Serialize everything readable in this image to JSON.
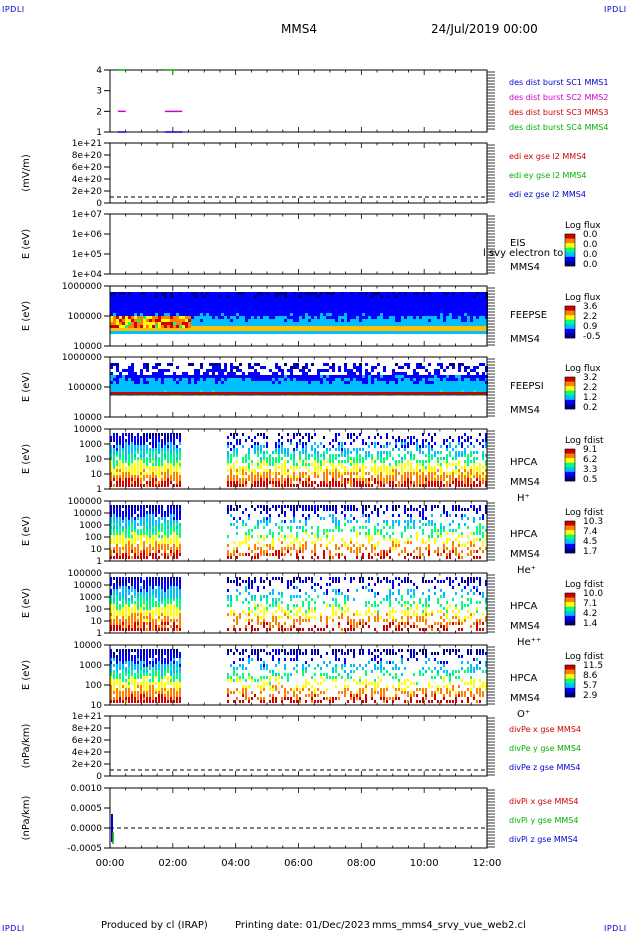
{
  "header": {
    "corner_label": "IPDLI",
    "spacecraft": "MMS4",
    "datetime": "24/Jul/2019 00:00"
  },
  "footer": {
    "produced_by": "Produced by cl (IRAP)",
    "printing_date": "Printing date: 01/Dec/2023",
    "filename": "mms_mms4_srvy_vue_web2.cl"
  },
  "x_axis": {
    "ticks": [
      "00:00",
      "02:00",
      "04:00",
      "06:00",
      "08:00",
      "10:00",
      "12:00"
    ],
    "range_hours": [
      0,
      12
    ]
  },
  "colors": {
    "series_red": "#d00000",
    "series_green": "#00b000",
    "series_blue": "#0000cc",
    "series_magenta": "#cc00cc",
    "frame": "#000000",
    "colorbar": [
      "#00007f",
      "#0000ff",
      "#00bfff",
      "#00ff80",
      "#ffff00",
      "#ff8000",
      "#d00000"
    ]
  },
  "panels": [
    {
      "id": "burst",
      "ylabel": "",
      "yticks": [
        "4",
        "3",
        "2",
        "1"
      ],
      "legend": [
        {
          "text": "des dist burst SC1 MMS1",
          "color": "#0000cc"
        },
        {
          "text": "des dist burst SC2 MMS2",
          "color": "#cc00cc"
        },
        {
          "text": "des dist burst SC3 MMS3",
          "color": "#d00000"
        },
        {
          "text": "des dist burst SC4 MMS4",
          "color": "#00b000"
        }
      ]
    },
    {
      "id": "edi",
      "ylabel": "(mV/m)",
      "yticks": [
        "1e+21",
        "8e+20",
        "6e+20",
        "4e+20",
        "2e+20",
        "0"
      ],
      "legend": [
        {
          "text": "edi ex gse l2 MMS4",
          "color": "#d00000"
        },
        {
          "text": "edi ey gse l2 MMS4",
          "color": "#00b000"
        },
        {
          "text": "edi ez gse l2 MMS4",
          "color": "#0000cc"
        }
      ]
    },
    {
      "id": "eis",
      "ylabel": "E (eV)",
      "yticks": [
        "1e+07",
        "1e+06",
        "1e+05",
        "1e+04"
      ],
      "instrument": [
        "EIS",
        "MMS4"
      ],
      "overlay_text": "l svy electron to",
      "colorbar": {
        "title": "Log flux",
        "ticks": [
          "0.0",
          "0.0",
          "0.0",
          "0.0"
        ]
      }
    },
    {
      "id": "feepse",
      "ylabel": "E (eV)",
      "yticks": [
        "1000000",
        "100000",
        "10000"
      ],
      "instrument": [
        "FEEPSE",
        "MMS4"
      ],
      "colorbar": {
        "title": "Log flux",
        "ticks": [
          "3.6",
          "2.2",
          "0.9",
          "-0.5"
        ]
      }
    },
    {
      "id": "feepsi",
      "ylabel": "E (eV)",
      "yticks": [
        "1000000",
        "100000",
        "10000"
      ],
      "instrument": [
        "FEEPSI",
        "MMS4"
      ],
      "colorbar": {
        "title": "Log flux",
        "ticks": [
          "3.2",
          "2.2",
          "1.2",
          "0.2"
        ]
      }
    },
    {
      "id": "hpca_h",
      "ylabel": "E (eV)",
      "yticks": [
        "10000",
        "1000",
        "100",
        "10",
        "1"
      ],
      "instrument": [
        "HPCA",
        "MMS4",
        "H⁺"
      ],
      "colorbar": {
        "title": "Log fdist",
        "ticks": [
          "9.1",
          "6.2",
          "3.3",
          "0.5"
        ]
      }
    },
    {
      "id": "hpca_he",
      "ylabel": "E (eV)",
      "yticks": [
        "100000",
        "10000",
        "1000",
        "100",
        "10",
        "1"
      ],
      "instrument": [
        "HPCA",
        "MMS4",
        "He⁺"
      ],
      "colorbar": {
        "title": "Log fdist",
        "ticks": [
          "10.3",
          "7.4",
          "4.5",
          "1.7"
        ]
      }
    },
    {
      "id": "hpca_hepp",
      "ylabel": "E (eV)",
      "yticks": [
        "100000",
        "10000",
        "1000",
        "100",
        "10",
        "1"
      ],
      "instrument": [
        "HPCA",
        "MMS4",
        "He⁺⁺"
      ],
      "colorbar": {
        "title": "Log fdist",
        "ticks": [
          "10.0",
          "7.1",
          "4.2",
          "1.4"
        ]
      }
    },
    {
      "id": "hpca_o",
      "ylabel": "E (eV)",
      "yticks": [
        "10000",
        "1000",
        "100",
        "10"
      ],
      "instrument": [
        "HPCA",
        "MMS4",
        "O⁺"
      ],
      "colorbar": {
        "title": "Log fdist",
        "ticks": [
          "11.5",
          "8.6",
          "5.7",
          "2.9"
        ]
      }
    },
    {
      "id": "divpe",
      "ylabel": "(nPa/km)",
      "yticks": [
        "1e+21",
        "8e+20",
        "6e+20",
        "4e+20",
        "2e+20",
        "0"
      ],
      "legend": [
        {
          "text": "divPe x gse MMS4",
          "color": "#d00000"
        },
        {
          "text": "divPe y gse MMS4",
          "color": "#00b000"
        },
        {
          "text": "divPe z gse MMS4",
          "color": "#0000cc"
        }
      ]
    },
    {
      "id": "divpi",
      "ylabel": "(nPa/km)",
      "yticks": [
        "0.0010",
        "0.0005",
        "0.0000",
        "-0.0005"
      ],
      "legend": [
        {
          "text": "divPi x gse MMS4",
          "color": "#d00000"
        },
        {
          "text": "divPi y gse MMS4",
          "color": "#00b000"
        },
        {
          "text": "divPi z gse MMS4",
          "color": "#0000cc"
        }
      ]
    }
  ],
  "chart_data": {
    "type": "heatmap",
    "title": "",
    "xlabel": "",
    "x_range_hours": [
      0,
      12
    ],
    "burst_intervals": [
      {
        "series": "MMS4",
        "level": 4,
        "start_h": 0.25,
        "end_h": 0.5
      },
      {
        "series": "MMS4",
        "level": 4,
        "start_h": 1.75,
        "end_h": 2.15
      },
      {
        "series": "MMS2",
        "level": 2,
        "start_h": 0.25,
        "end_h": 0.5
      },
      {
        "series": "MMS2",
        "level": 2,
        "start_h": 1.75,
        "end_h": 2.3
      },
      {
        "series": "MMS1",
        "level": 1,
        "start_h": 0.25,
        "end_h": 0.5
      },
      {
        "series": "MMS1",
        "level": 1,
        "start_h": 1.75,
        "end_h": 2.3
      }
    ],
    "hpca_data_gap_hours": [
      2.25,
      3.7
    ]
  }
}
